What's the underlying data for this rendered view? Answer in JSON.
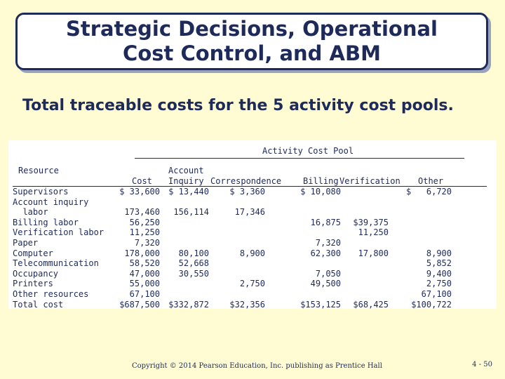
{
  "slide": {
    "title_line1": "Strategic Decisions, Operational",
    "title_line2": "Cost Control, and ABM",
    "subtitle": "Total traceable costs for the 5 activity cost pools.",
    "footer": "Copyright © 2014 Pearson Education, Inc. publishing as Prentice Hall",
    "page_number": "4 - 50"
  },
  "table": {
    "group_header": "Activity Cost Pool",
    "resource_header": "Resource",
    "account_header_top": "Account",
    "columns": [
      "Cost",
      "Inquiry",
      "Correspondence",
      "Billing",
      "Verification",
      "Other"
    ],
    "rows": [
      {
        "label": "Supervisors",
        "cost": "$ 33,600",
        "inquiry": "$ 13,440",
        "correspondence": "$ 3,360",
        "billing": "$ 10,080",
        "verification": "",
        "other": "$   6,720"
      },
      {
        "label": "Account inquiry",
        "cost": "",
        "inquiry": "",
        "correspondence": "",
        "billing": "",
        "verification": "",
        "other": ""
      },
      {
        "label": "  labor",
        "cost": "173,460",
        "inquiry": "156,114",
        "correspondence": "17,346",
        "billing": "",
        "verification": "",
        "other": ""
      },
      {
        "label": "Billing labor",
        "cost": "56,250",
        "inquiry": "",
        "correspondence": "",
        "billing": "16,875",
        "verification": "$39,375",
        "other": ""
      },
      {
        "label": "Verification labor",
        "cost": "11,250",
        "inquiry": "",
        "correspondence": "",
        "billing": "",
        "verification": "11,250",
        "other": ""
      },
      {
        "label": "Paper",
        "cost": "7,320",
        "inquiry": "",
        "correspondence": "",
        "billing": "7,320",
        "verification": "",
        "other": ""
      },
      {
        "label": "Computer",
        "cost": "178,000",
        "inquiry": "80,100",
        "correspondence": "8,900",
        "billing": "62,300",
        "verification": "17,800",
        "other": "8,900"
      },
      {
        "label": "Telecommunication",
        "cost": "58,520",
        "inquiry": "52,668",
        "correspondence": "",
        "billing": "",
        "verification": "",
        "other": "5,852"
      },
      {
        "label": "Occupancy",
        "cost": "47,000",
        "inquiry": "30,550",
        "correspondence": "",
        "billing": "7,050",
        "verification": "",
        "other": "9,400"
      },
      {
        "label": "Printers",
        "cost": "55,000",
        "inquiry": "",
        "correspondence": "2,750",
        "billing": "49,500",
        "verification": "",
        "other": "2,750"
      },
      {
        "label": "Other resources",
        "cost": "67,100",
        "inquiry": "",
        "correspondence": "",
        "billing": "",
        "verification": "",
        "other": "67,100"
      },
      {
        "label": "Total cost",
        "cost": "$687,500",
        "inquiry": "$332,872",
        "correspondence": "$32,356",
        "billing": "$153,125",
        "verification": "$68,425",
        "other": "$100,722"
      }
    ]
  }
}
